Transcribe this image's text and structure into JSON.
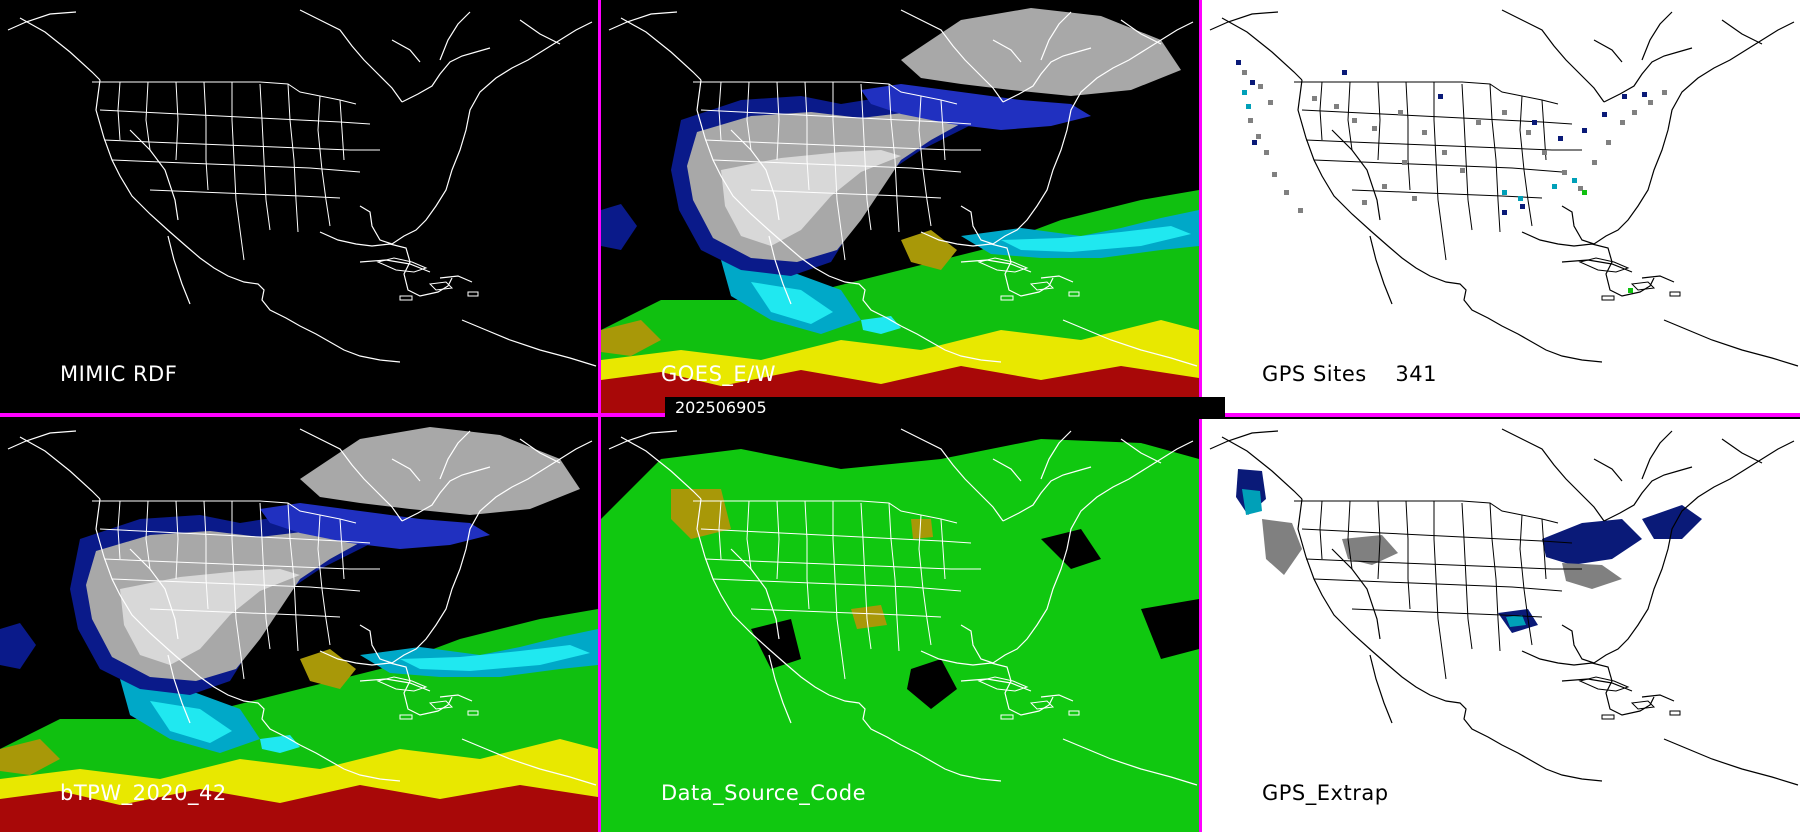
{
  "divider_color": "#ff00ff",
  "timestamp": "202506905",
  "panels": [
    {
      "id": "p1",
      "label": "MIMIC RDF",
      "background": "#000000",
      "outline_color": "#ffffff",
      "layer": "none"
    },
    {
      "id": "p2",
      "label": "GOES_E/W",
      "background": "#000000",
      "outline_color": "#ffffff",
      "layer": "precipitable-water"
    },
    {
      "id": "p3",
      "label": "GPS Sites    341",
      "background": "#ffffff",
      "outline_color": "#000000",
      "layer": "gps-site-markers"
    },
    {
      "id": "p4",
      "label": "bTPW_2020_42",
      "background": "#000000",
      "outline_color": "#ffffff",
      "layer": "precipitable-water"
    },
    {
      "id": "p5",
      "label": "Data_Source_Code",
      "background": "#000000",
      "outline_color": "#ffffff",
      "layer": "source-code"
    },
    {
      "id": "p6",
      "label": "GPS_Extrap",
      "background": "#ffffff",
      "outline_color": "#000000",
      "layer": "gps-extrapolation"
    }
  ],
  "colors": {
    "pw_gray": "#a8a8a8",
    "pw_light_gray": "#d8d8d8",
    "pw_navy": "#0a1a8a",
    "pw_blue": "#2030c0",
    "pw_teal": "#00a8c8",
    "pw_cyan": "#20e8f0",
    "pw_green": "#10c010",
    "pw_olive": "#a89808",
    "pw_yellow": "#e8e800",
    "pw_red": "#a80808",
    "source_green": "#10c810",
    "source_olive": "#a89808",
    "gps_gray": "#808080",
    "gps_navy": "#0a1a78",
    "gps_teal": "#00a0b8",
    "gps_green": "#10c010"
  }
}
